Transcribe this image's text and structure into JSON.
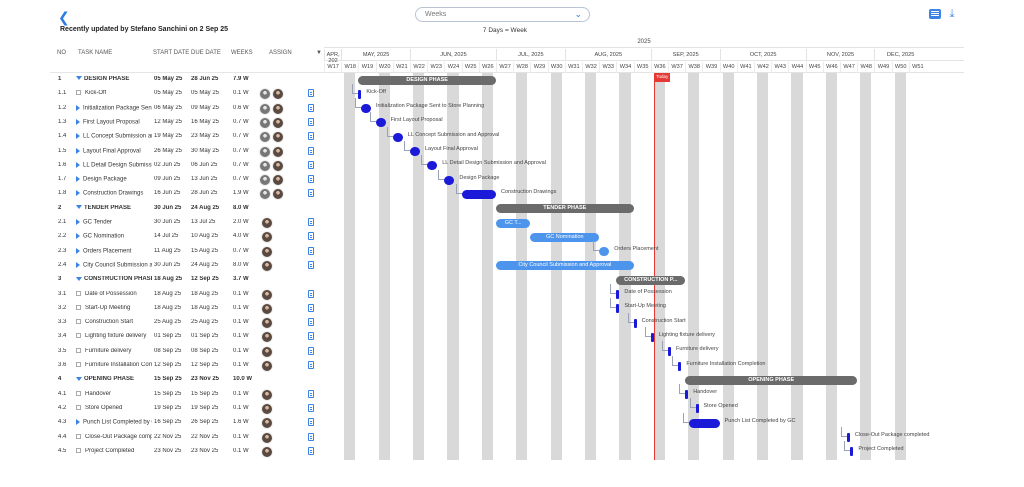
{
  "header": {
    "back_icon": "chevron-left-icon",
    "updated_text": "Recently updated by Stefano Sanchini on 2 Sep 25",
    "view_select": "Weeks",
    "scale_text": "7 Days = Week"
  },
  "table": {
    "columns": {
      "no": "NO",
      "name": "TASK NAME",
      "start": "START DATE",
      "due": "DUE DATE",
      "weeks": "WEEKS",
      "assign": "ASSIGN"
    },
    "rows": [
      {
        "no": "1",
        "name": "DESIGN PHASE",
        "start": "05 May 25",
        "due": "28 Jun 25",
        "weeks": "7.9 W",
        "type": "phase",
        "avatars": 0
      },
      {
        "no": "1.1",
        "name": "Kick-Off",
        "start": "05 May 25",
        "due": "05 May 25",
        "weeks": "0.1 W",
        "type": "check",
        "avatars": 2
      },
      {
        "no": "1.2",
        "name": "Initialization Package Sent to Store Planning",
        "start": "06 May 25",
        "due": "09 May 25",
        "weeks": "0.6 W",
        "type": "arrow",
        "avatars": 2
      },
      {
        "no": "1.3",
        "name": "First Layout Proposal",
        "start": "12 May 25",
        "due": "16 May 25",
        "weeks": "0.7 W",
        "type": "arrow",
        "avatars": 2
      },
      {
        "no": "1.4",
        "name": "LL Concept Submission and Approval",
        "start": "19 May 25",
        "due": "23 May 25",
        "weeks": "0.7 W",
        "type": "arrow",
        "avatars": 2
      },
      {
        "no": "1.5",
        "name": "Layout Final Approval",
        "start": "26 May 25",
        "due": "30 May 25",
        "weeks": "0.7 W",
        "type": "arrow",
        "avatars": 2
      },
      {
        "no": "1.6",
        "name": "LL Detail Design Submission and Approval",
        "start": "02 Jun 25",
        "due": "06 Jun 25",
        "weeks": "0.7 W",
        "type": "arrow",
        "avatars": 2
      },
      {
        "no": "1.7",
        "name": "Design Package",
        "start": "09 Jun 25",
        "due": "13 Jun 25",
        "weeks": "0.7 W",
        "type": "arrow",
        "avatars": 2
      },
      {
        "no": "1.8",
        "name": "Construction Drawings",
        "start": "16 Jun 25",
        "due": "28 Jun 25",
        "weeks": "1.9 W",
        "type": "arrow",
        "avatars": 2
      },
      {
        "no": "2",
        "name": "TENDER PHASE",
        "start": "30 Jun 25",
        "due": "24 Aug 25",
        "weeks": "8.0 W",
        "type": "phase",
        "avatars": 0
      },
      {
        "no": "2.1",
        "name": "GC Tender",
        "start": "30 Jun 25",
        "due": "13 Jul 25",
        "weeks": "2.0 W",
        "type": "arrow",
        "avatars": 1
      },
      {
        "no": "2.2",
        "name": "GC Nomination",
        "start": "14 Jul 25",
        "due": "10 Aug 25",
        "weeks": "4.0 W",
        "type": "arrow",
        "avatars": 1
      },
      {
        "no": "2.3",
        "name": "Orders Placement",
        "start": "11 Aug 25",
        "due": "15 Aug 25",
        "weeks": "0.7 W",
        "type": "arrow",
        "avatars": 1
      },
      {
        "no": "2.4",
        "name": "City Council Submission and Approval",
        "start": "30 Jun 25",
        "due": "24 Aug 25",
        "weeks": "8.0 W",
        "type": "arrow",
        "avatars": 1
      },
      {
        "no": "3",
        "name": "CONSTRUCTION PHASE",
        "start": "18 Aug 25",
        "due": "12 Sep 25",
        "weeks": "3.7 W",
        "type": "phase",
        "avatars": 0
      },
      {
        "no": "3.1",
        "name": "Date of Possession",
        "start": "18 Aug 25",
        "due": "18 Aug 25",
        "weeks": "0.1 W",
        "type": "check",
        "avatars": 1
      },
      {
        "no": "3.2",
        "name": "Start-Up Meeting",
        "start": "18 Aug 25",
        "due": "18 Aug 25",
        "weeks": "0.1 W",
        "type": "check",
        "avatars": 1
      },
      {
        "no": "3.3",
        "name": "Construction Start",
        "start": "25 Aug 25",
        "due": "25 Aug 25",
        "weeks": "0.1 W",
        "type": "check",
        "avatars": 1
      },
      {
        "no": "3.4",
        "name": "Lighting fixture delivery",
        "start": "01 Sep 25",
        "due": "01 Sep 25",
        "weeks": "0.1 W",
        "type": "check",
        "avatars": 1
      },
      {
        "no": "3.5",
        "name": "Furniture delivery",
        "start": "08 Sep 25",
        "due": "08 Sep 25",
        "weeks": "0.1 W",
        "type": "check",
        "avatars": 1
      },
      {
        "no": "3.6",
        "name": "Furniture Installation Completion",
        "start": "12 Sep 25",
        "due": "12 Sep 25",
        "weeks": "0.1 W",
        "type": "check",
        "avatars": 1
      },
      {
        "no": "4",
        "name": "OPENING PHASE",
        "start": "15 Sep 25",
        "due": "23 Nov 25",
        "weeks": "10.0 W",
        "type": "phase",
        "avatars": 0
      },
      {
        "no": "4.1",
        "name": "Handover",
        "start": "15 Sep 25",
        "due": "15 Sep 25",
        "weeks": "0.1 W",
        "type": "check",
        "avatars": 1
      },
      {
        "no": "4.2",
        "name": "Store Opened",
        "start": "19 Sep 25",
        "due": "19 Sep 25",
        "weeks": "0.1 W",
        "type": "check",
        "avatars": 1
      },
      {
        "no": "4.3",
        "name": "Punch List Completed by GC",
        "start": "16 Sep 25",
        "due": "26 Sep 25",
        "weeks": "1.6 W",
        "type": "arrow",
        "avatars": 1
      },
      {
        "no": "4.4",
        "name": "Close-Out Package completed",
        "start": "22 Nov 25",
        "due": "22 Nov 25",
        "weeks": "0.1 W",
        "type": "check",
        "avatars": 1
      },
      {
        "no": "4.5",
        "name": "Project Completed",
        "start": "23 Nov 25",
        "due": "23 Nov 25",
        "weeks": "0.1 W",
        "type": "check",
        "avatars": 1
      }
    ]
  },
  "gantt": {
    "year": "2025",
    "months": [
      {
        "label": "APR, 202",
        "weeks": 1
      },
      {
        "label": "MAY, 2025",
        "weeks": 4
      },
      {
        "label": "JUN, 2025",
        "weeks": 5
      },
      {
        "label": "JUL, 2025",
        "weeks": 4
      },
      {
        "label": "AUG, 2025",
        "weeks": 5
      },
      {
        "label": "SEP, 2025",
        "weeks": 4
      },
      {
        "label": "OCT, 2025",
        "weeks": 5
      },
      {
        "label": "NOV, 2025",
        "weeks": 4
      },
      {
        "label": "DEC, 2025",
        "weeks": 3
      }
    ],
    "weeks": [
      "W17",
      "W18",
      "W19",
      "W20",
      "W21",
      "W22",
      "W23",
      "W24",
      "W25",
      "W26",
      "W27",
      "W28",
      "W29",
      "W30",
      "W31",
      "W32",
      "W33",
      "W34",
      "W35",
      "W36",
      "W37",
      "W38",
      "W39",
      "W40",
      "W41",
      "W42",
      "W43",
      "W44",
      "W45",
      "W46",
      "W47",
      "W48",
      "W49",
      "W50",
      "W51"
    ],
    "today_label": "Today",
    "today_week": 36.2,
    "bars": [
      {
        "row": 0,
        "start": 19.0,
        "end": 27.0,
        "style": "phase",
        "text": "DESIGN PHASE",
        "label": ""
      },
      {
        "row": 1,
        "start": 19.0,
        "end": 19.15,
        "style": "dark",
        "text": "",
        "label": "Kick-Off"
      },
      {
        "row": 2,
        "start": 19.15,
        "end": 19.75,
        "style": "dark",
        "text": "",
        "label": "Initialization Package Sent to Store Planning"
      },
      {
        "row": 3,
        "start": 20.0,
        "end": 20.7,
        "style": "dark",
        "text": "",
        "label": "First Layout Proposal"
      },
      {
        "row": 4,
        "start": 21.0,
        "end": 21.7,
        "style": "dark",
        "text": "",
        "label": "LL Concept Submission and Approval"
      },
      {
        "row": 5,
        "start": 22.0,
        "end": 22.7,
        "style": "dark",
        "text": "",
        "label": "Layout Final Approval"
      },
      {
        "row": 6,
        "start": 23.0,
        "end": 23.7,
        "style": "dark",
        "text": "",
        "label": "LL Detail Design Submission and Approval"
      },
      {
        "row": 7,
        "start": 24.0,
        "end": 24.7,
        "style": "dark",
        "text": "",
        "label": "Design Package"
      },
      {
        "row": 8,
        "start": 25.0,
        "end": 27.0,
        "style": "dark",
        "text": "",
        "label": "Construction Drawings"
      },
      {
        "row": 9,
        "start": 27.0,
        "end": 35.0,
        "style": "phase",
        "text": "TENDER PHASE",
        "label": ""
      },
      {
        "row": 10,
        "start": 27.0,
        "end": 29.0,
        "style": "light",
        "text": "GC T...",
        "label": ""
      },
      {
        "row": 11,
        "start": 29.0,
        "end": 33.0,
        "style": "light",
        "text": "GC Nomination",
        "label": ""
      },
      {
        "row": 12,
        "start": 33.0,
        "end": 33.7,
        "style": "light",
        "text": "",
        "label": "Orders Placement"
      },
      {
        "row": 13,
        "start": 27.0,
        "end": 35.0,
        "style": "light",
        "text": "City Council Submission and Approval",
        "label": ""
      },
      {
        "row": 14,
        "start": 34.0,
        "end": 38.0,
        "style": "phase",
        "text": "CONSTRUCTION P...",
        "label": ""
      },
      {
        "row": 15,
        "start": 34.0,
        "end": 34.15,
        "style": "dark",
        "text": "",
        "label": "Date of Possession"
      },
      {
        "row": 16,
        "start": 34.0,
        "end": 34.15,
        "style": "dark",
        "text": "",
        "label": "Start-Up Meeting"
      },
      {
        "row": 17,
        "start": 35.0,
        "end": 35.15,
        "style": "dark",
        "text": "",
        "label": "Construction Start"
      },
      {
        "row": 18,
        "start": 36.0,
        "end": 36.15,
        "style": "dark",
        "text": "",
        "label": "Lighting fixture delivery"
      },
      {
        "row": 19,
        "start": 37.0,
        "end": 37.15,
        "style": "dark",
        "text": "",
        "label": "Furniture delivery"
      },
      {
        "row": 20,
        "start": 37.6,
        "end": 37.75,
        "style": "dark",
        "text": "",
        "label": "Furniture Installation Completion"
      },
      {
        "row": 21,
        "start": 38.0,
        "end": 48.0,
        "style": "phase",
        "text": "OPENING PHASE",
        "label": ""
      },
      {
        "row": 22,
        "start": 38.0,
        "end": 38.15,
        "style": "dark",
        "text": "",
        "label": "Handover"
      },
      {
        "row": 23,
        "start": 38.6,
        "end": 38.75,
        "style": "dark",
        "text": "",
        "label": "Store Opened"
      },
      {
        "row": 24,
        "start": 38.2,
        "end": 40.0,
        "style": "dark",
        "text": "",
        "label": "Punch List Completed by GC"
      },
      {
        "row": 25,
        "start": 47.4,
        "end": 47.55,
        "style": "dark",
        "text": "",
        "label": "Close-Out Package completed"
      },
      {
        "row": 26,
        "start": 47.6,
        "end": 47.75,
        "style": "dark",
        "text": "",
        "label": "Project Completed"
      }
    ]
  }
}
